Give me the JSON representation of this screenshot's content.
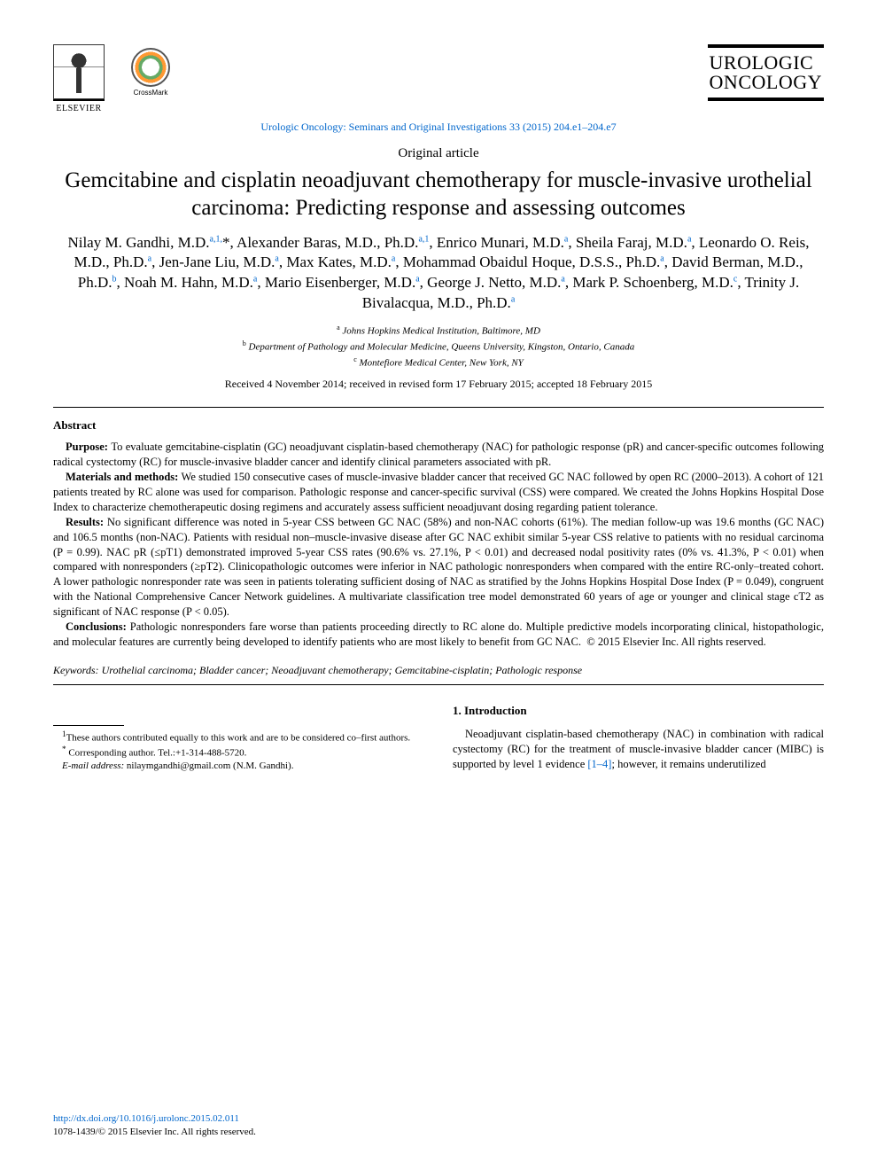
{
  "header": {
    "publisher_name": "ELSEVIER",
    "crossmark_label": "CrossMark",
    "journal_name_line1": "UROLOGIC",
    "journal_name_line2": "ONCOLOGY",
    "journal_ref": "Urologic Oncology: Seminars and Original Investigations 33 (2015) 204.e1–204.e7"
  },
  "article": {
    "type": "Original article",
    "title": "Gemcitabine and cisplatin neoadjuvant chemotherapy for muscle-invasive urothelial carcinoma: Predicting response and assessing outcomes",
    "authors_html": "Nilay M. Gandhi, M.D.<sup>a,1,</sup>*, Alexander Baras, M.D., Ph.D.<sup>a,1</sup>, Enrico Munari, M.D.<sup>a</sup>, Sheila Faraj, M.D.<sup>a</sup>, Leonardo O. Reis, M.D., Ph.D.<sup>a</sup>, Jen-Jane Liu, M.D.<sup>a</sup>, Max Kates, M.D.<sup>a</sup>, Mohammad Obaidul Hoque, D.S.S., Ph.D.<sup>a</sup>, David Berman, M.D., Ph.D.<sup>b</sup>, Noah M. Hahn, M.D.<sup>a</sup>, Mario Eisenberger, M.D.<sup>a</sup>, George J. Netto, M.D.<sup>a</sup>, Mark P. Schoenberg, M.D.<sup>c</sup>, Trinity J. Bivalacqua, M.D., Ph.D.<sup>a</sup>",
    "affiliations": {
      "a": "Johns Hopkins Medical Institution, Baltimore, MD",
      "b": "Department of Pathology and Molecular Medicine, Queens University, Kingston, Ontario, Canada",
      "c": "Montefiore Medical Center, New York, NY"
    },
    "dates": "Received 4 November 2014; received in revised form 17 February 2015; accepted 18 February 2015"
  },
  "abstract": {
    "heading": "Abstract",
    "purpose": "To evaluate gemcitabine-cisplatin (GC) neoadjuvant cisplatin-based chemotherapy (NAC) for pathologic response (pR) and cancer-specific outcomes following radical cystectomy (RC) for muscle-invasive bladder cancer and identify clinical parameters associated with pR.",
    "materials": "We studied 150 consecutive cases of muscle-invasive bladder cancer that received GC NAC followed by open RC (2000–2013). A cohort of 121 patients treated by RC alone was used for comparison. Pathologic response and cancer-specific survival (CSS) were compared. We created the Johns Hopkins Hospital Dose Index to characterize chemotherapeutic dosing regimens and accurately assess sufficient neoadjuvant dosing regarding patient tolerance.",
    "results": "No significant difference was noted in 5-year CSS between GC NAC (58%) and non-NAC cohorts (61%). The median follow-up was 19.6 months (GC NAC) and 106.5 months (non-NAC). Patients with residual non–muscle-invasive disease after GC NAC exhibit similar 5-year CSS relative to patients with no residual carcinoma (P = 0.99). NAC pR (≤pT1) demonstrated improved 5-year CSS rates (90.6% vs. 27.1%, P < 0.01) and decreased nodal positivity rates (0% vs. 41.3%, P < 0.01) when compared with nonresponders (≥pT2). Clinicopathologic outcomes were inferior in NAC pathologic nonresponders when compared with the entire RC-only–treated cohort. A lower pathologic nonresponder rate was seen in patients tolerating sufficient dosing of NAC as stratified by the Johns Hopkins Hospital Dose Index (P = 0.049), congruent with the National Comprehensive Cancer Network guidelines. A multivariate classification tree model demonstrated 60 years of age or younger and clinical stage cT2 as significant of NAC response (P < 0.05).",
    "conclusions": "Pathologic nonresponders fare worse than patients proceeding directly to RC alone do. Multiple predictive models incorporating clinical, histopathologic, and molecular features are currently being developed to identify patients who are most likely to benefit from GC NAC.",
    "copyright": "© 2015 Elsevier Inc. All rights reserved."
  },
  "keywords": {
    "label": "Keywords:",
    "text": "Urothelial carcinoma; Bladder cancer; Neoadjuvant chemotherapy; Gemcitabine-cisplatin; Pathologic response"
  },
  "intro": {
    "heading": "1. Introduction",
    "para": "Neoadjuvant cisplatin-based chemotherapy (NAC) in combination with radical cystectomy (RC) for the treatment of muscle-invasive bladder cancer (MIBC) is supported by level 1 evidence [1–4]; however, it remains underutilized",
    "ref_range": "[1–4]"
  },
  "footnotes": {
    "cofirst": "These authors contributed equally to this work and are to be considered co–first authors.",
    "corresponding": "Corresponding author. Tel.:+1-314-488-5720.",
    "email_label": "E-mail address:",
    "email": "nilaymgandhi@gmail.com",
    "email_attribution": "(N.M. Gandhi)."
  },
  "footer": {
    "doi": "http://dx.doi.org/10.1016/j.urolonc.2015.02.011",
    "issn_line": "1078-1439/© 2015 Elsevier Inc. All rights reserved."
  },
  "colors": {
    "link": "#0066cc",
    "text": "#000000",
    "background": "#ffffff"
  }
}
